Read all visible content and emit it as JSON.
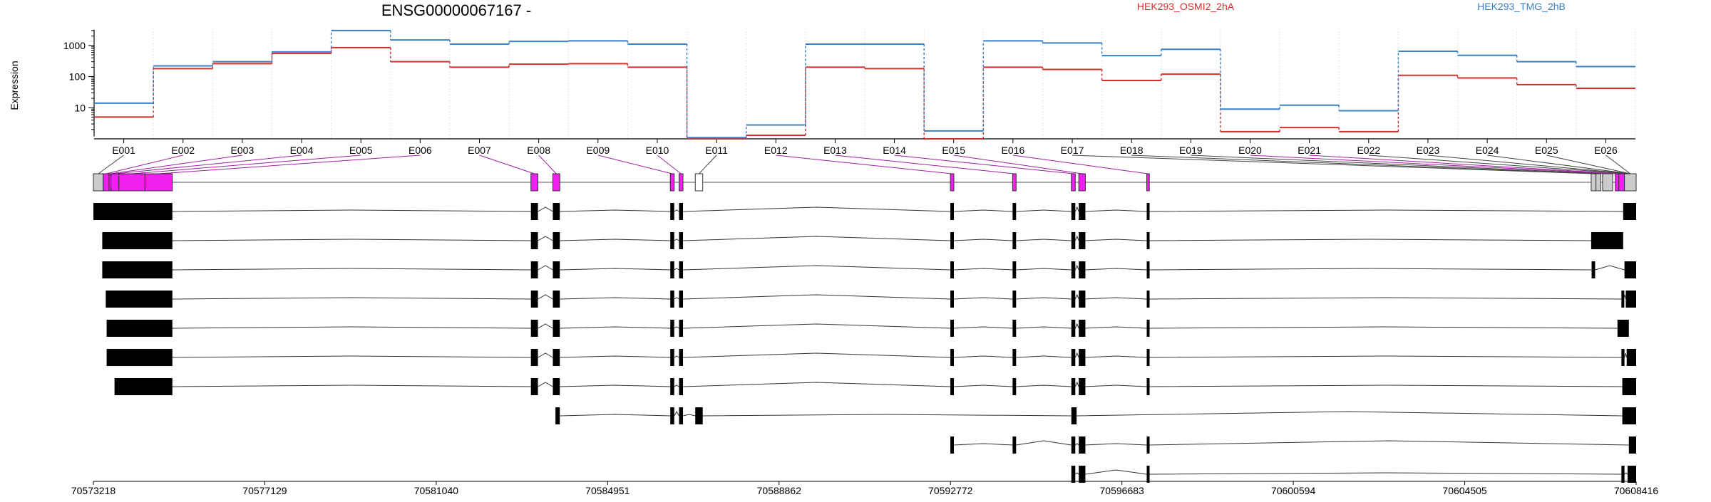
{
  "chart_data": {
    "type": "line",
    "title": "ENSG00000067167 -",
    "ylabel": "Expression",
    "y_scale": "log",
    "y_ticks": [
      10,
      100,
      1000
    ],
    "ylim": [
      1,
      3500
    ],
    "grid": "vertical dotted lines at exon bins",
    "legend_placement": "top-right",
    "colors": {
      "series_a": "#d0312d",
      "series_b": "#3b7fc4",
      "exon_highlight": "#f020f0",
      "exon_other": "#cccccc",
      "connector": "#a020a0"
    },
    "categories": [
      "E001",
      "E002",
      "E003",
      "E004",
      "E005",
      "E006",
      "E007",
      "E008",
      "E009",
      "E010",
      "E011",
      "E012",
      "E013",
      "E014",
      "E015",
      "E016",
      "E017",
      "E018",
      "E019",
      "E020",
      "E021",
      "E022",
      "E023",
      "E024",
      "E025",
      "E026"
    ],
    "series": [
      {
        "name": "HEK293_OSMI2_2hA",
        "color": "#d0312d",
        "values": [
          5,
          180,
          260,
          550,
          850,
          300,
          200,
          250,
          260,
          200,
          1,
          1.3,
          200,
          180,
          1,
          200,
          170,
          75,
          120,
          1.7,
          2.3,
          1.7,
          110,
          90,
          55,
          42
        ]
      },
      {
        "name": "HEK293_TMG_2hB",
        "color": "#3b7fc4",
        "values": [
          14,
          220,
          300,
          620,
          3000,
          1500,
          1100,
          1350,
          1400,
          1100,
          1.1,
          2.8,
          1100,
          1100,
          1.8,
          1400,
          1200,
          470,
          750,
          9,
          12,
          8,
          650,
          480,
          300,
          210
        ]
      }
    ],
    "genomic_axis": {
      "tick_labels": [
        "70573218",
        "70577129",
        "70581040",
        "70584951",
        "70588862",
        "70592772",
        "70596683",
        "70600594",
        "70604505",
        "70608416"
      ],
      "range": [
        70573218,
        70608416
      ]
    },
    "gene_model": {
      "exons": [
        {
          "start": 70573218,
          "end": 70573440,
          "type": "other"
        },
        {
          "start": 70573440,
          "end": 70573575,
          "type": "highlight"
        },
        {
          "start": 70573575,
          "end": 70573620,
          "type": "highlight"
        },
        {
          "start": 70573620,
          "end": 70573800,
          "type": "highlight"
        },
        {
          "start": 70573800,
          "end": 70574395,
          "type": "highlight"
        },
        {
          "start": 70574395,
          "end": 70575020,
          "type": "highlight"
        },
        {
          "start": 70575020,
          "end": 70583200,
          "type": "intron"
        },
        {
          "start": 70583200,
          "end": 70583360,
          "type": "highlight"
        },
        {
          "start": 70583700,
          "end": 70583860,
          "type": "highlight"
        },
        {
          "start": 70586380,
          "end": 70586470,
          "type": "highlight"
        },
        {
          "start": 70586580,
          "end": 70586670,
          "type": "highlight"
        },
        {
          "start": 70586950,
          "end": 70587120,
          "type": "other-white"
        },
        {
          "start": 70592770,
          "end": 70592850,
          "type": "highlight"
        },
        {
          "start": 70594190,
          "end": 70594270,
          "type": "highlight"
        },
        {
          "start": 70595530,
          "end": 70595620,
          "type": "highlight"
        },
        {
          "start": 70595700,
          "end": 70595850,
          "type": "highlight"
        },
        {
          "start": 70597250,
          "end": 70597310,
          "type": "highlight"
        },
        {
          "start": 70607390,
          "end": 70607500,
          "type": "other"
        },
        {
          "start": 70607500,
          "end": 70607610,
          "type": "other"
        },
        {
          "start": 70607650,
          "end": 70607880,
          "type": "other"
        },
        {
          "start": 70607940,
          "end": 70608020,
          "type": "highlight"
        },
        {
          "start": 70608020,
          "end": 70608150,
          "type": "highlight"
        },
        {
          "start": 70608150,
          "end": 70608416,
          "type": "other"
        }
      ]
    },
    "transcripts": [
      [
        [
          70573218,
          70575020
        ],
        [
          70583200,
          70583360
        ],
        [
          70583700,
          70583860
        ],
        [
          70586380,
          70586470
        ],
        [
          70586580,
          70586670
        ],
        [
          70592770,
          70592850
        ],
        [
          70594190,
          70594270
        ],
        [
          70595530,
          70595620
        ],
        [
          70595700,
          70595850
        ],
        [
          70597250,
          70597310
        ],
        [
          70608120,
          70608416
        ]
      ],
      [
        [
          70573420,
          70575020
        ],
        [
          70583200,
          70583360
        ],
        [
          70583700,
          70583860
        ],
        [
          70586380,
          70586470
        ],
        [
          70586580,
          70586670
        ],
        [
          70592770,
          70592850
        ],
        [
          70594190,
          70594270
        ],
        [
          70595530,
          70595620
        ],
        [
          70595700,
          70595850
        ],
        [
          70597250,
          70597310
        ],
        [
          70607390,
          70608120
        ]
      ],
      [
        [
          70573420,
          70575020
        ],
        [
          70583200,
          70583360
        ],
        [
          70583700,
          70583860
        ],
        [
          70586380,
          70586470
        ],
        [
          70586580,
          70586670
        ],
        [
          70592770,
          70592850
        ],
        [
          70594190,
          70594270
        ],
        [
          70595530,
          70595620
        ],
        [
          70595700,
          70595850
        ],
        [
          70597250,
          70597310
        ],
        [
          70607400,
          70607480
        ],
        [
          70608150,
          70608416
        ]
      ],
      [
        [
          70573500,
          70575020
        ],
        [
          70583200,
          70583360
        ],
        [
          70583700,
          70583860
        ],
        [
          70586380,
          70586470
        ],
        [
          70586580,
          70586670
        ],
        [
          70592770,
          70592850
        ],
        [
          70594190,
          70594270
        ],
        [
          70595530,
          70595620
        ],
        [
          70595700,
          70595850
        ],
        [
          70597250,
          70597310
        ],
        [
          70608080,
          70608130
        ],
        [
          70608180,
          70608416
        ]
      ],
      [
        [
          70573520,
          70575020
        ],
        [
          70583200,
          70583360
        ],
        [
          70583700,
          70583860
        ],
        [
          70586380,
          70586470
        ],
        [
          70586580,
          70586670
        ],
        [
          70592770,
          70592850
        ],
        [
          70594190,
          70594270
        ],
        [
          70595530,
          70595620
        ],
        [
          70595700,
          70595850
        ],
        [
          70597250,
          70597310
        ],
        [
          70607990,
          70608250
        ]
      ],
      [
        [
          70573520,
          70575020
        ],
        [
          70583200,
          70583360
        ],
        [
          70583700,
          70583860
        ],
        [
          70586380,
          70586470
        ],
        [
          70586580,
          70586670
        ],
        [
          70592770,
          70592850
        ],
        [
          70594190,
          70594270
        ],
        [
          70595530,
          70595620
        ],
        [
          70595700,
          70595850
        ],
        [
          70597250,
          70597310
        ],
        [
          70608080,
          70608150
        ],
        [
          70608200,
          70608416
        ]
      ],
      [
        [
          70573700,
          70575020
        ],
        [
          70583200,
          70583360
        ],
        [
          70583700,
          70583860
        ],
        [
          70586380,
          70586470
        ],
        [
          70586580,
          70586670
        ],
        [
          70592770,
          70592850
        ],
        [
          70594190,
          70594270
        ],
        [
          70595530,
          70595620
        ],
        [
          70595700,
          70595850
        ],
        [
          70597250,
          70597310
        ],
        [
          70608100,
          70608416
        ]
      ],
      [
        [
          70583760,
          70583860
        ],
        [
          70586380,
          70586470
        ],
        [
          70586580,
          70586670
        ],
        [
          70586950,
          70587120
        ],
        [
          70595530,
          70595650
        ],
        [
          70608100,
          70608416
        ]
      ],
      [
        [
          70592770,
          70592850
        ],
        [
          70594190,
          70594270
        ],
        [
          70595530,
          70595620
        ],
        [
          70595700,
          70595850
        ],
        [
          70597250,
          70597310
        ],
        [
          70608250,
          70608416
        ]
      ],
      [
        [
          70595530,
          70595620
        ],
        [
          70595700,
          70595850
        ],
        [
          70597250,
          70597310
        ],
        [
          70608080,
          70608150
        ],
        [
          70608220,
          70608416
        ]
      ]
    ]
  }
}
